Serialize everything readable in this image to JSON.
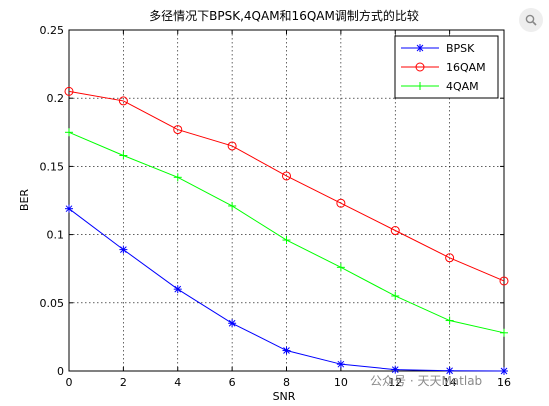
{
  "chart_data": {
    "type": "line",
    "title": "多径情况下BPSK,4QAM和16QAM调制方式的比较",
    "xlabel": "SNR",
    "ylabel": "BER",
    "xlim": [
      0,
      16
    ],
    "ylim": [
      0,
      0.25
    ],
    "xticks": [
      "0",
      "2",
      "4",
      "6",
      "8",
      "10",
      "12",
      "14",
      "16"
    ],
    "yticks": [
      "0",
      "0.05",
      "0.1",
      "0.15",
      "0.2",
      "0.25"
    ],
    "grid": true,
    "legend_position": "top-right",
    "x": [
      0,
      2,
      4,
      6,
      8,
      10,
      12,
      14,
      16
    ],
    "series": [
      {
        "name": "BPSK",
        "color": "#0000ff",
        "marker": "star",
        "values": [
          0.119,
          0.089,
          0.06,
          0.035,
          0.015,
          0.005,
          0.001,
          0.0002,
          0.0
        ]
      },
      {
        "name": "16QAM",
        "color": "#ff0000",
        "marker": "circle",
        "values": [
          0.205,
          0.198,
          0.177,
          0.165,
          0.143,
          0.123,
          0.103,
          0.083,
          0.066
        ]
      },
      {
        "name": "4QAM",
        "color": "#00ff00",
        "marker": "plus",
        "values": [
          0.175,
          0.158,
          0.142,
          0.121,
          0.096,
          0.076,
          0.055,
          0.037,
          0.028
        ]
      }
    ]
  },
  "overlay": {
    "watermark_text": "公众号 · 天天Matlab",
    "magnify_icon": "search-icon"
  }
}
